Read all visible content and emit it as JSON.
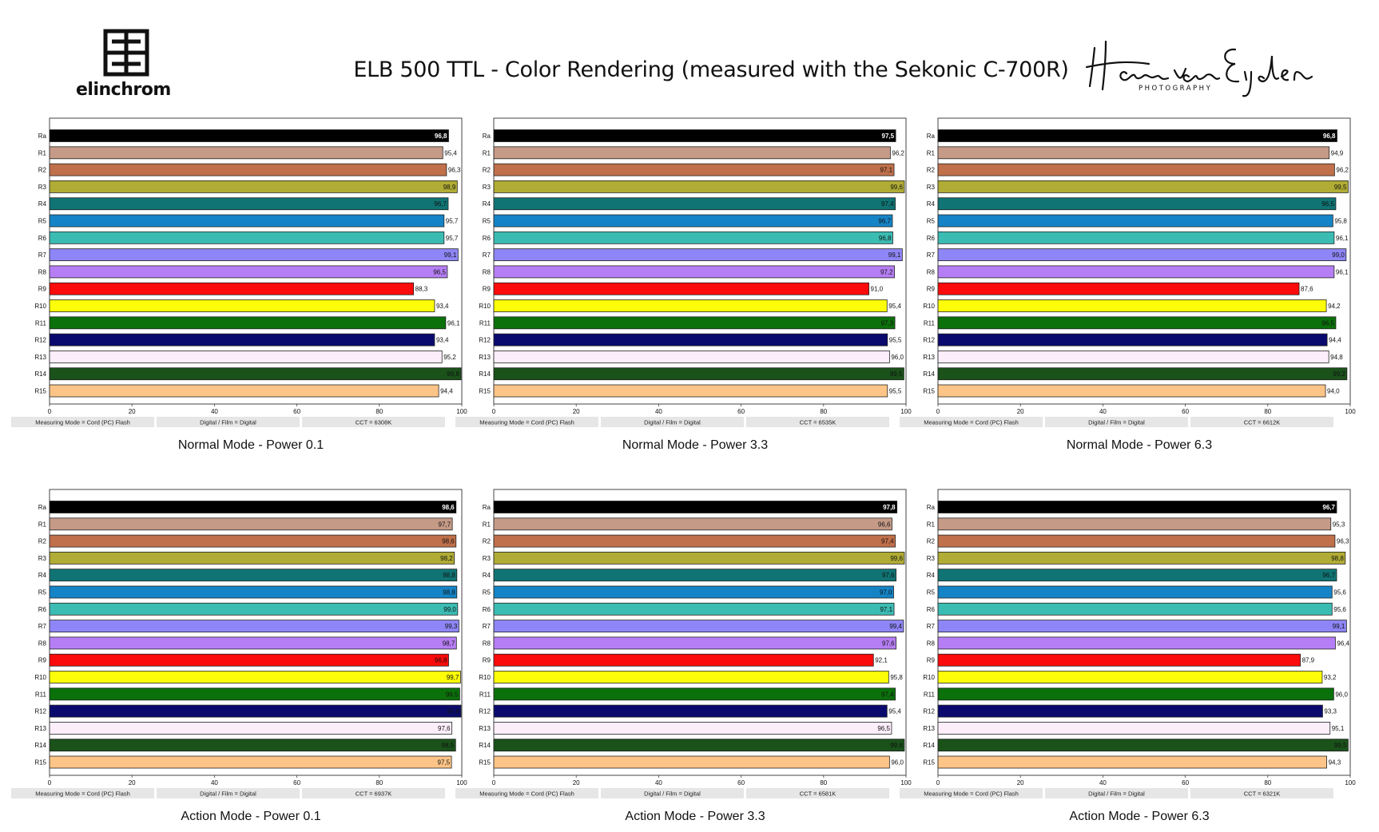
{
  "header": {
    "logo_text": "elinchrom",
    "title": "ELB 500 TTL - Color Rendering (measured with the Sekonic C-700R)",
    "signature": "Hans van Eijsden",
    "signature_sub": "PHOTOGRAPHY"
  },
  "chart_data": [
    {
      "type": "bar",
      "orientation": "horizontal",
      "title": "Normal Mode - Power 0.1",
      "categories": [
        "Ra",
        "R1",
        "R2",
        "R3",
        "R4",
        "R5",
        "R6",
        "R7",
        "R8",
        "R9",
        "R10",
        "R11",
        "R12",
        "R13",
        "R14",
        "R15"
      ],
      "values": [
        96.8,
        95.4,
        96.3,
        98.9,
        96.7,
        95.7,
        95.7,
        99.1,
        96.5,
        88.3,
        93.4,
        96.1,
        93.4,
        95.2,
        99.8,
        94.4
      ],
      "labels": [
        "96,8",
        "95,4",
        "96,3",
        "98,9",
        "96,7",
        "95,7",
        "95,7",
        "99,1",
        "96,5",
        "88,3",
        "93,4",
        "96,1",
        "93,4",
        "95,2",
        "99,8",
        "94,4"
      ],
      "xlim": [
        0,
        100
      ],
      "ticks": [
        0,
        20,
        40,
        60,
        80,
        100
      ],
      "footer": [
        "Measuring Mode = Cord (PC) Flash",
        "Digital / Film = Digital",
        "CCT = 6308K"
      ]
    },
    {
      "type": "bar",
      "orientation": "horizontal",
      "title": "Normal Mode - Power 3.3",
      "categories": [
        "Ra",
        "R1",
        "R2",
        "R3",
        "R4",
        "R5",
        "R6",
        "R7",
        "R8",
        "R9",
        "R10",
        "R11",
        "R12",
        "R13",
        "R14",
        "R15"
      ],
      "values": [
        97.5,
        96.2,
        97.1,
        99.6,
        97.4,
        96.7,
        96.8,
        99.1,
        97.2,
        91.0,
        95.4,
        97.3,
        95.5,
        96.0,
        99.5,
        95.5
      ],
      "labels": [
        "97,5",
        "96,2",
        "97,1",
        "99,6",
        "97,4",
        "96,7",
        "96,8",
        "99,1",
        "97,2",
        "91,0",
        "95,4",
        "97,3",
        "95,5",
        "96,0",
        "99,5",
        "95,5"
      ],
      "xlim": [
        0,
        100
      ],
      "ticks": [
        0,
        20,
        40,
        60,
        80,
        100
      ],
      "footer": [
        "Measuring Mode = Cord (PC) Flash",
        "Digital / Film = Digital",
        "CCT = 6535K"
      ]
    },
    {
      "type": "bar",
      "orientation": "horizontal",
      "title": "Normal Mode - Power 6.3",
      "categories": [
        "Ra",
        "R1",
        "R2",
        "R3",
        "R4",
        "R5",
        "R6",
        "R7",
        "R8",
        "R9",
        "R10",
        "R11",
        "R12",
        "R13",
        "R14",
        "R15"
      ],
      "values": [
        96.8,
        94.9,
        96.2,
        99.5,
        96.5,
        95.8,
        96.1,
        99.0,
        96.1,
        87.6,
        94.2,
        96.5,
        94.4,
        94.8,
        99.2,
        94.0
      ],
      "labels": [
        "96,8",
        "94,9",
        "96,2",
        "99,5",
        "96,5",
        "95,8",
        "96,1",
        "99,0",
        "96,1",
        "87,6",
        "94,2",
        "96,5",
        "94,4",
        "94,8",
        "99,2",
        "94,0"
      ],
      "xlim": [
        0,
        100
      ],
      "ticks": [
        0,
        20,
        40,
        60,
        80,
        100
      ],
      "footer": [
        "Measuring Mode = Cord (PC) Flash",
        "Digital / Film = Digital",
        "CCT = 6612K"
      ]
    },
    {
      "type": "bar",
      "orientation": "horizontal",
      "title": "Action Mode - Power 0.1",
      "categories": [
        "Ra",
        "R1",
        "R2",
        "R3",
        "R4",
        "R5",
        "R6",
        "R7",
        "R8",
        "R9",
        "R10",
        "R11",
        "R12",
        "R13",
        "R14",
        "R15"
      ],
      "values": [
        98.6,
        97.7,
        98.6,
        98.2,
        98.8,
        98.8,
        99.0,
        99.3,
        98.7,
        96.8,
        99.7,
        99.5,
        99.8,
        97.6,
        98.5,
        97.5
      ],
      "labels": [
        "98,6",
        "97,7",
        "98,6",
        "98,2",
        "98,8",
        "98,8",
        "99,0",
        "99,3",
        "98,7",
        "96,8",
        "99,7",
        "99,5",
        "99,8",
        "97,6",
        "98,5",
        "97,5"
      ],
      "xlim": [
        0,
        100
      ],
      "ticks": [
        0,
        20,
        40,
        60,
        80,
        100
      ],
      "footer": [
        "Measuring Mode = Cord (PC) Flash",
        "Digital / Film = Digital",
        "CCT = 6937K"
      ]
    },
    {
      "type": "bar",
      "orientation": "horizontal",
      "title": "Action Mode - Power 3.3",
      "categories": [
        "Ra",
        "R1",
        "R2",
        "R3",
        "R4",
        "R5",
        "R6",
        "R7",
        "R8",
        "R9",
        "R10",
        "R11",
        "R12",
        "R13",
        "R14",
        "R15"
      ],
      "values": [
        97.8,
        96.6,
        97.4,
        99.6,
        97.6,
        97.0,
        97.1,
        99.4,
        97.6,
        92.1,
        95.8,
        97.4,
        95.4,
        96.5,
        99.6,
        96.0
      ],
      "labels": [
        "97,8",
        "96,6",
        "97,4",
        "99,6",
        "97,6",
        "97,0",
        "97,1",
        "99,4",
        "97,6",
        "92,1",
        "95,8",
        "97,4",
        "95,4",
        "96,5",
        "99,6",
        "96,0"
      ],
      "xlim": [
        0,
        100
      ],
      "ticks": [
        0,
        20,
        40,
        60,
        80,
        100
      ],
      "footer": [
        "Measuring Mode = Cord (PC) Flash",
        "Digital / Film = Digital",
        "CCT = 6581K"
      ]
    },
    {
      "type": "bar",
      "orientation": "horizontal",
      "title": "Action Mode - Power 6.3",
      "categories": [
        "Ra",
        "R1",
        "R2",
        "R3",
        "R4",
        "R5",
        "R6",
        "R7",
        "R8",
        "R9",
        "R10",
        "R11",
        "R12",
        "R13",
        "R14",
        "R15"
      ],
      "values": [
        96.7,
        95.3,
        96.3,
        98.8,
        96.7,
        95.6,
        95.6,
        99.1,
        96.4,
        87.9,
        93.2,
        96.0,
        93.3,
        95.1,
        99.5,
        94.3
      ],
      "labels": [
        "96,7",
        "95,3",
        "96,3",
        "98,8",
        "96,7",
        "95,6",
        "95,6",
        "99,1",
        "96,4",
        "87,9",
        "93,2",
        "96,0",
        "93,3",
        "95,1",
        "99,5",
        "94,3"
      ],
      "xlim": [
        0,
        100
      ],
      "ticks": [
        0,
        20,
        40,
        60,
        80,
        100
      ],
      "footer": [
        "Measuring Mode = Cord (PC) Flash",
        "Digital / Film = Digital",
        "CCT = 6321K"
      ]
    }
  ],
  "colors": {
    "bars": [
      "#000000",
      "#c59a86",
      "#c0704a",
      "#b0ac35",
      "#107474",
      "#1584c6",
      "#3bbcb3",
      "#8e86f6",
      "#b67ef4",
      "#fb0b0b",
      "#fdfd09",
      "#0b710b",
      "#0a0a6e",
      "#fdeefc",
      "#1a521a",
      "#fdc487"
    ],
    "white_label_index": [
      0
    ]
  }
}
